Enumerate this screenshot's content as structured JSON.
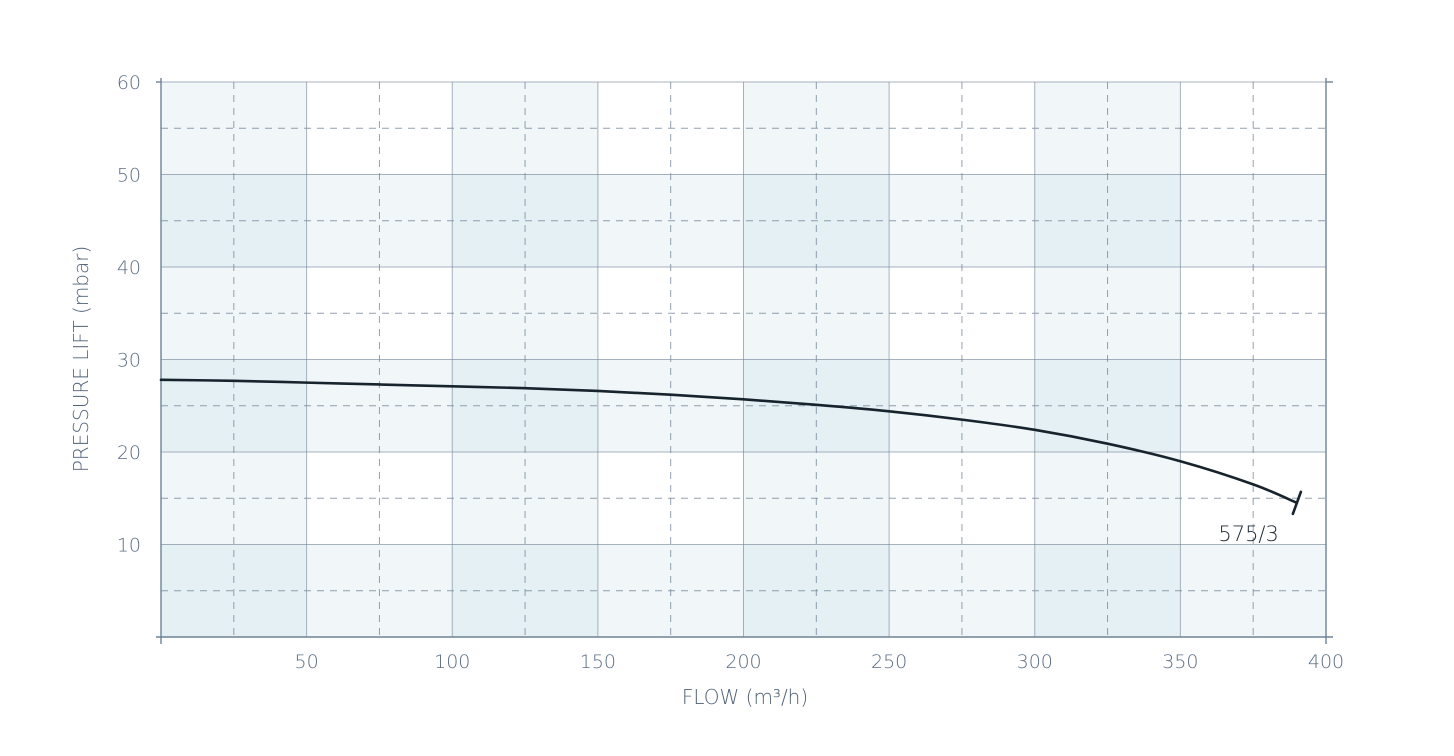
{
  "chart_data": {
    "type": "line",
    "title": "",
    "xlabel": "FLOW (m³/h)",
    "ylabel": "PRESSURE LIFT (mbar)",
    "xlim": [
      0,
      400
    ],
    "ylim": [
      0,
      60
    ],
    "x_ticks": [
      50,
      100,
      150,
      200,
      250,
      300,
      350,
      400
    ],
    "y_ticks": [
      10,
      20,
      30,
      40,
      50,
      60
    ],
    "x_minor_gridlines": [
      25,
      75,
      125,
      175,
      225,
      275,
      325,
      375
    ],
    "y_minor_gridlines": [
      5,
      15,
      25,
      35,
      45,
      55
    ],
    "grid": true,
    "series": [
      {
        "name": "575/3",
        "x": [
          0,
          25,
          50,
          75,
          100,
          125,
          150,
          175,
          200,
          225,
          250,
          275,
          300,
          325,
          350,
          375,
          390
        ],
        "y": [
          27.8,
          27.7,
          27.5,
          27.3,
          27.1,
          26.9,
          26.6,
          26.2,
          25.7,
          25.1,
          24.4,
          23.5,
          22.4,
          20.9,
          19.0,
          16.5,
          14.5
        ]
      }
    ]
  },
  "colors": {
    "band_light": "#f1f6f9",
    "band_dark": "#e5f0f5",
    "grid": "#6f8296",
    "axis": "#6f8296",
    "curve": "#17232d"
  }
}
